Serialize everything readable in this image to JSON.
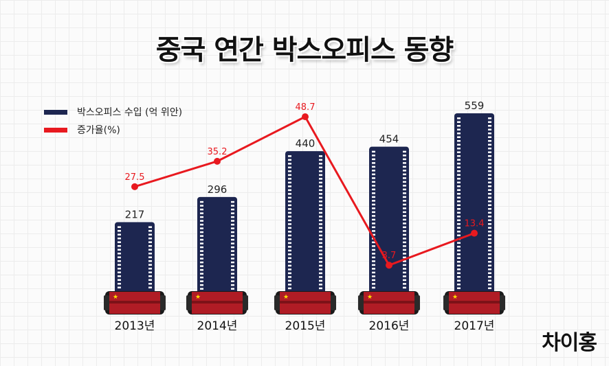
{
  "title": "중국 연간 박스오피스 동향",
  "brand": "차이홍",
  "colors": {
    "bar": "#1d2650",
    "line": "#e8191f",
    "reel": "#b01c25"
  },
  "chart_data": {
    "type": "bar",
    "categories": [
      "2013년",
      "2014년",
      "2015년",
      "2016년",
      "2017년"
    ],
    "series": [
      {
        "name": "박스오피스 수입 (억 위안)",
        "type": "bar",
        "values": [
          217,
          296,
          440,
          454,
          559
        ]
      },
      {
        "name": "증가율(%)",
        "type": "line",
        "values": [
          27.5,
          35.2,
          48.7,
          3.7,
          13.4
        ]
      }
    ],
    "bar_labels": [
      "217",
      "296",
      "440",
      "454",
      "559"
    ],
    "line_labels": [
      "27.5",
      "35.2",
      "48.7",
      "3.7",
      "13.4"
    ],
    "legend": [
      "박스오피스 수입 (억 위안)",
      "증가율(%)"
    ],
    "legend_position": "top-left",
    "title": "중국 연간 박스오피스 동향"
  }
}
